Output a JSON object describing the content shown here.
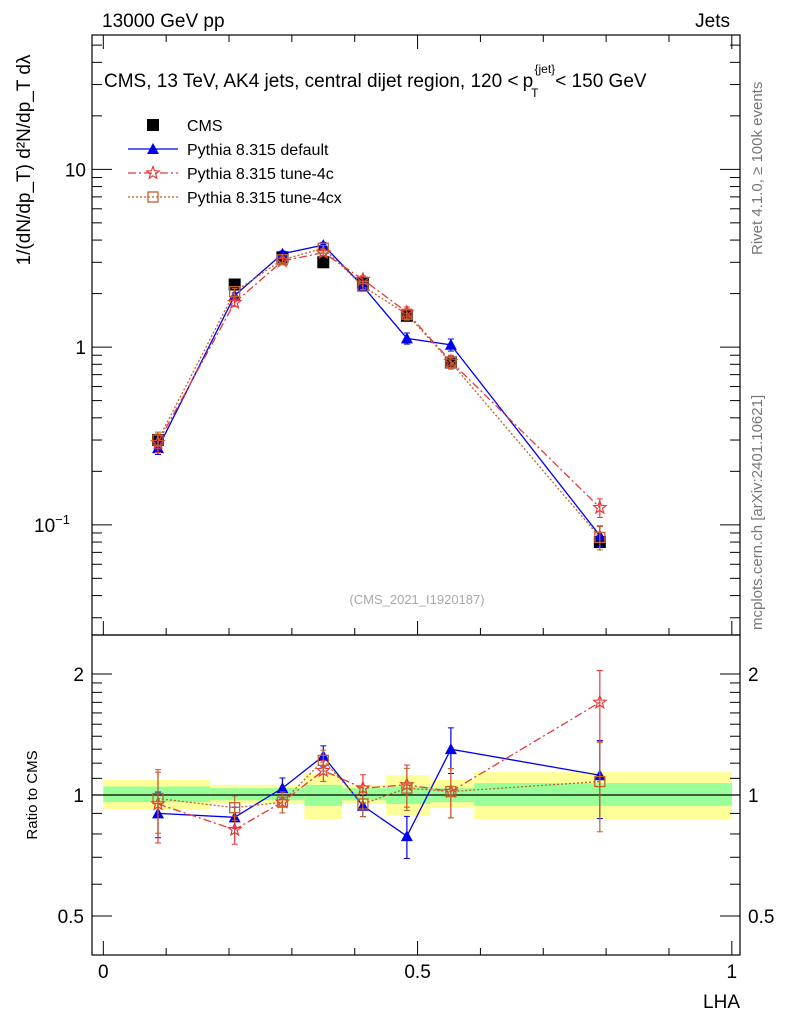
{
  "header": {
    "left": "13000 GeV pp",
    "right": "Jets"
  },
  "right_labels": {
    "rivet": "Rivet 4.1.0, ≥ 100k events",
    "mcplots": "mcplots.cern.ch [arXiv:2401.10621]"
  },
  "chart_data": {
    "type": "line",
    "title": "CMS, 13 TeV, AK4 jets, central dijet region, 120 < p_T^{jet} < 150 GeV",
    "title_parts": {
      "pre": "CMS, 13 TeV, AK4 jets, central dijet region, 120 <",
      "p": "p",
      "sub": "T",
      "sup": "{jet}",
      "post": "< 150 GeV"
    },
    "watermark": "(CMS_2021_I1920187)",
    "xlabel": "LHA",
    "ylabel": "1/(dN/dp_T) d²N/dp_T dλ",
    "ratio_ylabel": "Ratio to CMS",
    "xlim": [
      -0.018,
      1.013
    ],
    "ylim": [
      0.024,
      57
    ],
    "yscale": "log",
    "ratio_ylim": [
      0.4,
      2.5
    ],
    "xticks": [
      "0",
      "0.5",
      "1"
    ],
    "yticks": [
      {
        "v": 10,
        "label": "10"
      },
      {
        "v": 1,
        "label": "1"
      },
      {
        "v": 0.1,
        "label": "10^-1"
      }
    ],
    "ratio_yticks": [
      {
        "v": 2,
        "label": "2"
      },
      {
        "v": 1,
        "label": "1"
      },
      {
        "v": 0.5,
        "label": "0.5"
      }
    ],
    "x": [
      0.087,
      0.209,
      0.285,
      0.35,
      0.413,
      0.483,
      0.553,
      0.79
    ],
    "bin_edges": [
      0,
      0.17,
      0.27,
      0.32,
      0.38,
      0.45,
      0.52,
      0.59,
      1.0
    ],
    "band_total": [
      [
        0.92,
        1.09
      ],
      [
        0.95,
        1.06
      ],
      [
        0.95,
        1.06
      ],
      [
        0.87,
        1.13
      ],
      [
        0.95,
        1.06
      ],
      [
        0.89,
        1.12
      ],
      [
        0.93,
        1.09
      ],
      [
        0.87,
        1.14
      ]
    ],
    "band_stat": [
      [
        0.96,
        1.05
      ],
      [
        0.97,
        1.04
      ],
      [
        0.97,
        1.04
      ],
      [
        0.94,
        1.06
      ],
      [
        0.97,
        1.04
      ],
      [
        0.95,
        1.05
      ],
      [
        0.96,
        1.04
      ],
      [
        0.94,
        1.07
      ]
    ],
    "data": {
      "name": "CMS",
      "color": "#000000",
      "values": [
        0.3,
        2.25,
        3.2,
        3.0,
        2.3,
        1.5,
        0.82,
        0.08
      ]
    },
    "series": [
      {
        "name": "Pythia 8.315 default",
        "color": "#0000ee",
        "marker": "triangle",
        "dash": "",
        "values": [
          0.27,
          1.95,
          3.35,
          3.75,
          2.2,
          1.12,
          1.03,
          0.087
        ],
        "ratio": [
          0.9,
          0.88,
          1.04,
          1.25,
          0.94,
          0.79,
          1.3,
          1.12
        ],
        "err": [
          0.13,
          0.06,
          0.06,
          0.06,
          0.06,
          0.12,
          0.13,
          0.22
        ]
      },
      {
        "name": "Pythia 8.315 tune-4c",
        "color": "#e8393a",
        "marker": "star",
        "dash": "8,3,2,3",
        "values": [
          0.29,
          1.78,
          3.05,
          3.4,
          2.4,
          1.57,
          0.83,
          0.125
        ],
        "ratio": [
          0.95,
          0.82,
          0.96,
          1.15,
          1.04,
          1.06,
          1.02,
          1.7
        ],
        "err": [
          0.2,
          0.08,
          0.06,
          0.06,
          0.08,
          0.12,
          0.14,
          0.2
        ]
      },
      {
        "name": "Pythia 8.315 tune-4cx",
        "color": "#c0622a",
        "marker": "square",
        "dash": "2,2",
        "values": [
          0.3,
          2.05,
          3.1,
          3.6,
          2.2,
          1.53,
          0.82,
          0.085
        ],
        "ratio": [
          0.98,
          0.93,
          0.96,
          1.22,
          0.95,
          1.04,
          1.02,
          1.08
        ],
        "err": [
          0.18,
          0.07,
          0.06,
          0.06,
          0.07,
          0.12,
          0.14,
          0.25
        ]
      }
    ]
  }
}
